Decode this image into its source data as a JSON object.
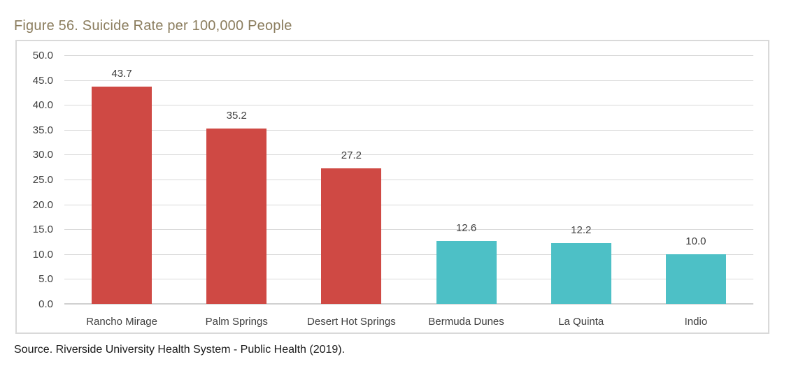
{
  "page": {
    "title": "Figure 56. Suicide Rate per 100,000 People",
    "source": "Source. Riverside University Health System - Public Health (2019)."
  },
  "colors": {
    "title_text": "#8B7D5E",
    "bar_red": "#CF4944",
    "bar_teal": "#4DC0C6",
    "gridline": "#D9D9D9",
    "zero_line": "#D0D0D0",
    "chart_border": "#D9D9D9",
    "tick_text": "#404040",
    "data_label_text": "#404040",
    "category_text": "#404040",
    "source_text": "#1a1a1a"
  },
  "chart_data": {
    "type": "bar",
    "title": "Figure 56. Suicide Rate per 100,000 People",
    "categories": [
      "Rancho Mirage",
      "Palm Springs",
      "Desert Hot Springs",
      "Bermuda Dunes",
      "La Quinta",
      "Indio"
    ],
    "values": [
      43.7,
      35.2,
      27.2,
      12.6,
      12.2,
      10.0
    ],
    "data_labels": [
      "43.7",
      "35.2",
      "27.2",
      "12.6",
      "12.2",
      "10.0"
    ],
    "bar_colors": [
      "#CF4944",
      "#CF4944",
      "#CF4944",
      "#4DC0C6",
      "#4DC0C6",
      "#4DC0C6"
    ],
    "xlabel": "",
    "ylabel": "",
    "ylim": [
      0,
      50
    ],
    "ytick_step": 5,
    "ytick_labels": [
      "0.0",
      "5.0",
      "10.0",
      "15.0",
      "20.0",
      "25.0",
      "30.0",
      "35.0",
      "40.0",
      "45.0",
      "50.0"
    ],
    "grid": true,
    "legend_position": "none",
    "source": "Source. Riverside University Health System - Public Health (2019)."
  }
}
